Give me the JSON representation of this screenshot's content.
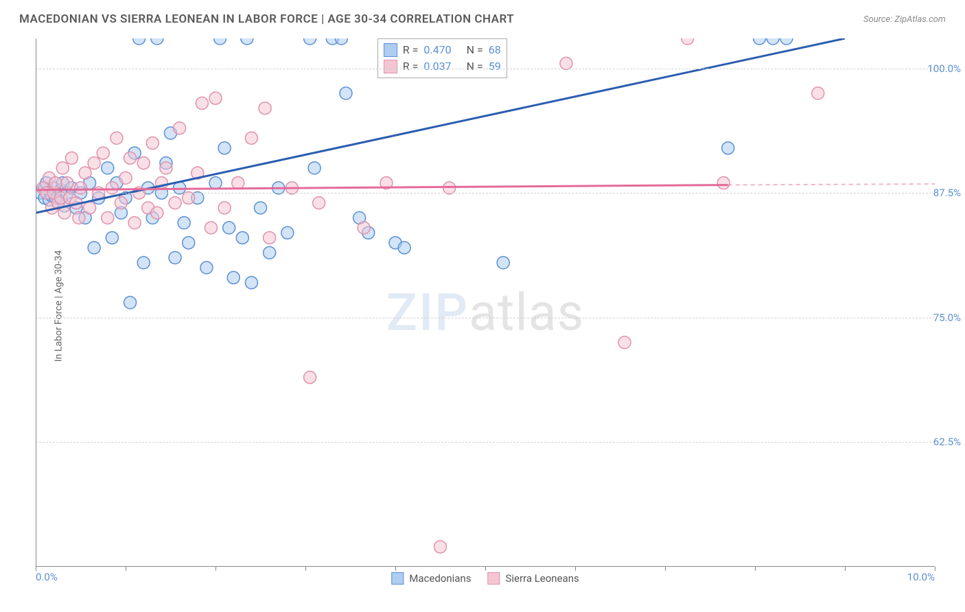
{
  "header": {
    "title": "MACEDONIAN VS SIERRA LEONEAN IN LABOR FORCE | AGE 30-34 CORRELATION CHART",
    "source": "Source: ZipAtlas.com"
  },
  "chart": {
    "type": "scatter",
    "y_axis_label": "In Labor Force | Age 30-34",
    "xlim": [
      0.0,
      10.0
    ],
    "ylim": [
      50.0,
      103.0
    ],
    "x_ticks": [
      0.0,
      1.0,
      2.0,
      3.0,
      4.0,
      5.0,
      6.0,
      7.0,
      8.0,
      9.0,
      10.0
    ],
    "x_tick_labels": {
      "0": "0.0%",
      "10": "10.0%"
    },
    "y_ticks": [
      62.5,
      75.0,
      87.5,
      100.0
    ],
    "y_tick_labels": {
      "62.5": "62.5%",
      "75": "75.0%",
      "87.5": "87.5%",
      "100": "100.0%"
    },
    "background_color": "#ffffff",
    "grid_color": "#d0d0d0",
    "axis_color": "#888888",
    "tick_label_color": "#5b8fd6",
    "marker_radius": 9,
    "marker_opacity": 0.55,
    "series": [
      {
        "name": "Macedonians",
        "color_fill": "#aecdf0",
        "color_stroke": "#5b8fd6",
        "line_color": "#2a5db0",
        "r_value": "0.470",
        "n_value": "68",
        "trend": {
          "x1": 0.0,
          "y1": 85.5,
          "x2": 9.0,
          "y2": 103.0,
          "dash_after_x": 9.0
        },
        "points": [
          [
            0.05,
            87.5
          ],
          [
            0.1,
            88.0
          ],
          [
            0.1,
            87.0
          ],
          [
            0.12,
            88.5
          ],
          [
            0.15,
            86.8
          ],
          [
            0.18,
            87.2
          ],
          [
            0.2,
            88.0
          ],
          [
            0.22,
            87.0
          ],
          [
            0.25,
            86.5
          ],
          [
            0.28,
            87.8
          ],
          [
            0.3,
            88.5
          ],
          [
            0.32,
            86.2
          ],
          [
            0.35,
            87.5
          ],
          [
            0.4,
            88.0
          ],
          [
            0.45,
            86.0
          ],
          [
            0.5,
            87.5
          ],
          [
            0.55,
            85.0
          ],
          [
            0.6,
            88.5
          ],
          [
            0.65,
            82.0
          ],
          [
            0.7,
            87.0
          ],
          [
            0.8,
            90.0
          ],
          [
            0.85,
            83.0
          ],
          [
            0.9,
            88.5
          ],
          [
            0.95,
            85.5
          ],
          [
            1.0,
            87.0
          ],
          [
            1.05,
            76.5
          ],
          [
            1.1,
            91.5
          ],
          [
            1.15,
            103.0
          ],
          [
            1.2,
            80.5
          ],
          [
            1.25,
            88.0
          ],
          [
            1.3,
            85.0
          ],
          [
            1.35,
            103.0
          ],
          [
            1.4,
            87.5
          ],
          [
            1.45,
            90.5
          ],
          [
            1.5,
            93.5
          ],
          [
            1.55,
            81.0
          ],
          [
            1.6,
            88.0
          ],
          [
            1.65,
            84.5
          ],
          [
            1.7,
            82.5
          ],
          [
            1.8,
            87.0
          ],
          [
            1.9,
            80.0
          ],
          [
            2.0,
            88.5
          ],
          [
            2.05,
            103.0
          ],
          [
            2.1,
            92.0
          ],
          [
            2.15,
            84.0
          ],
          [
            2.2,
            79.0
          ],
          [
            2.3,
            83.0
          ],
          [
            2.35,
            103.0
          ],
          [
            2.4,
            78.5
          ],
          [
            2.5,
            86.0
          ],
          [
            2.6,
            81.5
          ],
          [
            2.7,
            88.0
          ],
          [
            2.8,
            83.5
          ],
          [
            3.05,
            103.0
          ],
          [
            3.1,
            90.0
          ],
          [
            3.3,
            103.0
          ],
          [
            3.4,
            103.0
          ],
          [
            3.45,
            97.5
          ],
          [
            3.6,
            85.0
          ],
          [
            3.7,
            83.5
          ],
          [
            4.0,
            82.5
          ],
          [
            4.1,
            82.0
          ],
          [
            4.3,
            103.0
          ],
          [
            5.2,
            80.5
          ],
          [
            7.7,
            92.0
          ],
          [
            8.05,
            103.0
          ],
          [
            8.2,
            103.0
          ],
          [
            8.35,
            103.0
          ]
        ]
      },
      {
        "name": "Sierra Leoneans",
        "color_fill": "#f4c6d4",
        "color_stroke": "#e091ac",
        "line_color": "#e46a9a",
        "r_value": "0.037",
        "n_value": "59",
        "trend": {
          "x1": 0.0,
          "y1": 87.8,
          "x2": 7.7,
          "y2": 88.3,
          "dash_after_x": 7.7,
          "x2_dash": 10.0,
          "y2_dash": 88.4
        },
        "points": [
          [
            0.08,
            88.0
          ],
          [
            0.12,
            87.5
          ],
          [
            0.15,
            89.0
          ],
          [
            0.18,
            86.0
          ],
          [
            0.2,
            87.5
          ],
          [
            0.22,
            88.5
          ],
          [
            0.25,
            86.5
          ],
          [
            0.28,
            87.0
          ],
          [
            0.3,
            90.0
          ],
          [
            0.32,
            85.5
          ],
          [
            0.35,
            88.5
          ],
          [
            0.38,
            87.0
          ],
          [
            0.4,
            91.0
          ],
          [
            0.45,
            86.5
          ],
          [
            0.48,
            85.0
          ],
          [
            0.5,
            88.0
          ],
          [
            0.55,
            89.5
          ],
          [
            0.6,
            86.0
          ],
          [
            0.65,
            90.5
          ],
          [
            0.7,
            87.5
          ],
          [
            0.75,
            91.5
          ],
          [
            0.8,
            85.0
          ],
          [
            0.85,
            88.0
          ],
          [
            0.9,
            93.0
          ],
          [
            0.95,
            86.5
          ],
          [
            1.0,
            89.0
          ],
          [
            1.05,
            91.0
          ],
          [
            1.1,
            84.5
          ],
          [
            1.15,
            87.5
          ],
          [
            1.2,
            90.5
          ],
          [
            1.25,
            86.0
          ],
          [
            1.3,
            92.5
          ],
          [
            1.35,
            85.5
          ],
          [
            1.4,
            88.5
          ],
          [
            1.45,
            90.0
          ],
          [
            1.55,
            86.5
          ],
          [
            1.6,
            94.0
          ],
          [
            1.7,
            87.0
          ],
          [
            1.8,
            89.5
          ],
          [
            1.85,
            96.5
          ],
          [
            1.95,
            84.0
          ],
          [
            2.0,
            97.0
          ],
          [
            2.1,
            86.0
          ],
          [
            2.25,
            88.5
          ],
          [
            2.4,
            93.0
          ],
          [
            2.55,
            96.0
          ],
          [
            2.6,
            83.0
          ],
          [
            2.85,
            88.0
          ],
          [
            3.05,
            69.0
          ],
          [
            3.15,
            86.5
          ],
          [
            3.65,
            84.0
          ],
          [
            3.9,
            88.5
          ],
          [
            4.5,
            52.0
          ],
          [
            4.6,
            88.0
          ],
          [
            5.9,
            100.5
          ],
          [
            6.55,
            72.5
          ],
          [
            7.25,
            103.0
          ],
          [
            8.7,
            97.5
          ],
          [
            7.65,
            88.5
          ]
        ]
      }
    ],
    "legend_top_position": {
      "left_pct": 38,
      "top_pct": 0
    },
    "legend_bottom_items": [
      "Macedonians",
      "Sierra Leoneans"
    ]
  },
  "watermark": {
    "zip": "ZIP",
    "atlas": "atlas"
  }
}
